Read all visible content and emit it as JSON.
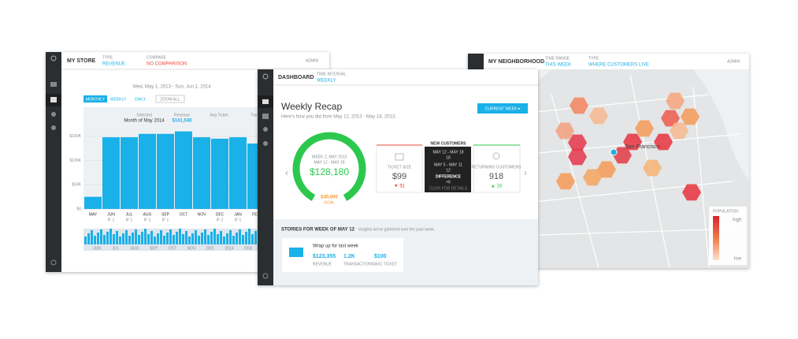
{
  "store": {
    "header": {
      "title": "MY STORE",
      "type_label": "TYPE",
      "type_value": "REVENUE",
      "compare_label": "COMPARE",
      "compare_value": "NO COMPARISON",
      "user": "ADMIN"
    },
    "date_range": "Wed, May 1, 2013 - Sun, Jun 1, 2014",
    "buttons": [
      "MONTHLY",
      "WEEKLY",
      "DAILY",
      "ZOOM ALL"
    ],
    "summary": [
      {
        "label": "Selected",
        "value": "Month of May 2014"
      },
      {
        "label": "Revenue",
        "value": "$141,540"
      },
      {
        "label": "Avg Ticket"
      },
      {
        "label": "Transac"
      }
    ],
    "chart": {
      "type": "bar",
      "categories": [
        "MAY",
        "JUN",
        "JUL",
        "AUG",
        "SEP",
        "OCT",
        "NOV",
        "DEC",
        "JAN",
        "FEB"
      ],
      "notes": [
        null,
        "IF 1",
        "IF 1",
        "IF 1",
        "IF 1",
        null,
        null,
        "IF 2",
        "IF 1",
        null
      ],
      "values": [
        25000,
        148000,
        148000,
        155000,
        155000,
        160000,
        148000,
        145000,
        148000,
        135000
      ],
      "color": "#1ab0e8",
      "ylim": [
        0,
        210000
      ],
      "yticks": [
        {
          "value": 0,
          "label": "$0"
        },
        {
          "value": 50000,
          "label": "$50K"
        },
        {
          "value": 100000,
          "label": "$100K"
        },
        {
          "value": 150000,
          "label": "$150K"
        }
      ]
    },
    "navigator_labels": [
      "JUN",
      "JUL",
      "AUG",
      "SEP",
      "OCT",
      "NOV",
      "DEC",
      "2014",
      "FEB"
    ]
  },
  "dashboard": {
    "header": {
      "title": "DASHBOARD",
      "interval_label": "TIME INTERVAL",
      "interval_value": "WEEKLY"
    },
    "title": "Weekly Recap",
    "subtitle": "Here's how you did from May 12, 2013 - May 18, 2013.",
    "button": "CURRENT WEEK ▾",
    "gauge": {
      "week": "WEEK 2, MAY 2013",
      "range": "MAY 12 - MAY 18",
      "value": "$128,180",
      "goal": "$30,000",
      "goal_label": "GOAL"
    },
    "ticket": {
      "label": "TICKET SIZE",
      "value": "$99",
      "change": "▼ $1"
    },
    "new_customers": {
      "title": "NEW CUSTOMERS",
      "current_range": "MAY 12 - MAY 18",
      "current": "18",
      "previous_range": "MAY 5 - MAY 11",
      "previous": "12",
      "difference_label": "DIFFERENCE",
      "difference": "+6",
      "link": "CLICK FOR DETAILS"
    },
    "returning": {
      "label": "RETURNING CUSTOMERS",
      "value": "918",
      "change": "▲ 18"
    },
    "stories": {
      "title": "STORIES FOR WEEK OF MAY 12",
      "subtitle": "Insights we've gathered over the past week.",
      "card_title": "Wrap up for last week",
      "metrics": [
        {
          "value": "$123,355",
          "label": "REVENUE"
        },
        {
          "value": "1.2K",
          "label": "TRANSACTIONS"
        },
        {
          "value": "$100",
          "label": "AVG TICKET"
        }
      ]
    }
  },
  "neighborhood": {
    "header": {
      "title": "MY NEIGHBORHOOD",
      "range_label": "TIME RANGE",
      "range_value": "THIS WEEK",
      "type_label": "TYPE",
      "type_value": "WHERE CUSTOMERS LIVE",
      "user": "ADMIN"
    },
    "city": "San Francisco",
    "legend": {
      "title": "POPULATION",
      "high": "high",
      "low": "low"
    }
  }
}
